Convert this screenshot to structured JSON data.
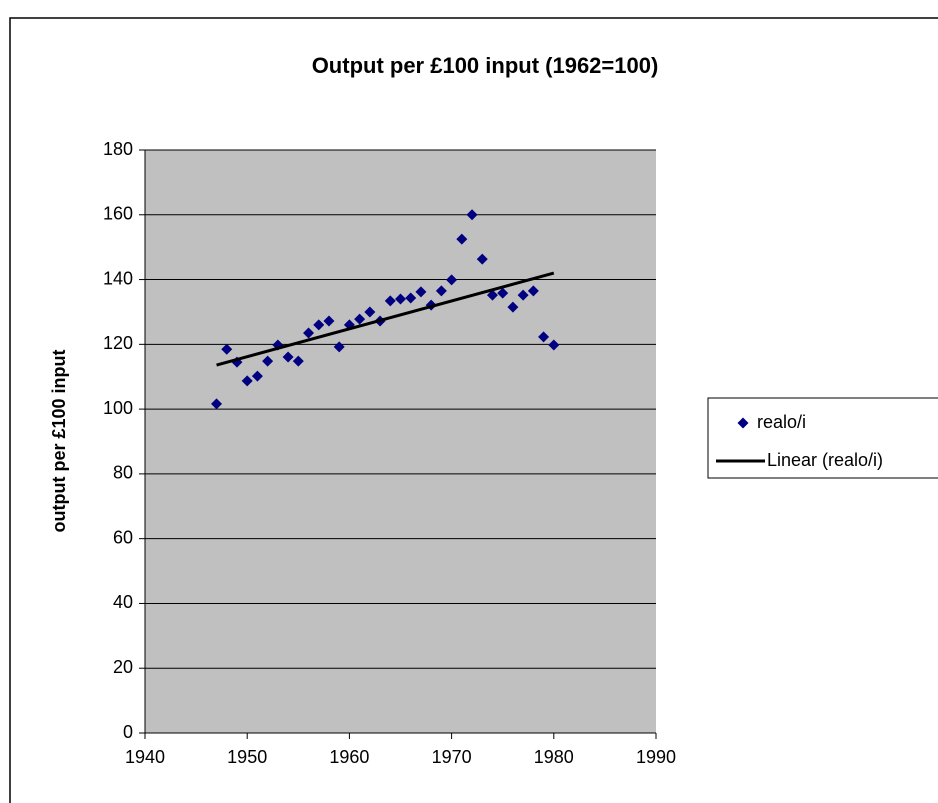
{
  "chart_data": {
    "type": "scatter",
    "title": "Output per £100 input (1962=100)",
    "y_label": "output per £100 input",
    "series": [
      {
        "name": "realo/i",
        "color": "#000080",
        "kind": "points",
        "x": [
          1947,
          1948,
          1949,
          1950,
          1951,
          1952,
          1953,
          1954,
          1955,
          1956,
          1957,
          1958,
          1959,
          1960,
          1961,
          1962,
          1963,
          1964,
          1965,
          1966,
          1967,
          1968,
          1969,
          1970,
          1971,
          1972,
          1973,
          1974,
          1975,
          1976,
          1977,
          1978,
          1979,
          1980
        ],
        "values": [
          101.6,
          118.5,
          114.5,
          108.7,
          110.2,
          114.8,
          119.8,
          116.1,
          114.8,
          123.5,
          126,
          127.2,
          119.2,
          126,
          127.8,
          130,
          127.2,
          133.4,
          134,
          134.3,
          136.2,
          132.1,
          136.5,
          139.9,
          152.5,
          160,
          146.3,
          135.2,
          135.8,
          131.5,
          135.2,
          136.5,
          122.3,
          119.8
        ]
      },
      {
        "name": "Linear (realo/i)",
        "color": "#000000",
        "kind": "line",
        "x": [
          1947,
          1980
        ],
        "values": [
          113.6,
          142
        ]
      }
    ],
    "xlim": [
      1940,
      1990
    ],
    "xticks": [
      1940,
      1950,
      1960,
      1970,
      1980,
      1990
    ],
    "ylim": [
      0,
      180
    ],
    "yticks": [
      0,
      20,
      40,
      60,
      80,
      100,
      120,
      140,
      160,
      180
    ],
    "grid": true,
    "legend": "right",
    "plot_background": "#c0c0c0"
  }
}
